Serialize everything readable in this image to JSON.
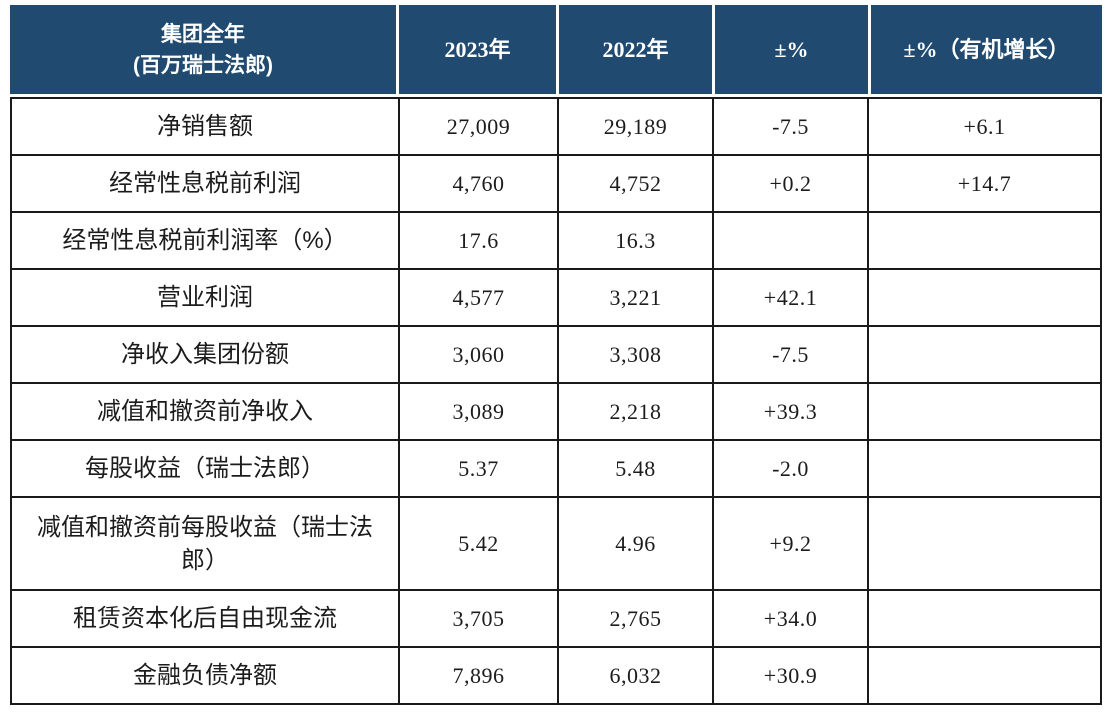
{
  "table": {
    "unit_note": "百万瑞士法郎",
    "columns": [
      "集团全年\n(百万瑞士法郎)",
      "2023年",
      "2022年",
      "±%",
      "±%（有机增长）"
    ],
    "rows": [
      {
        "label": "净销售额",
        "y2023": "27,009",
        "y2022": "29,189",
        "change_pct": "-7.5",
        "organic_pct": "+6.1"
      },
      {
        "label": "经常性息税前利润",
        "y2023": "4,760",
        "y2022": "4,752",
        "change_pct": "+0.2",
        "organic_pct": "+14.7"
      },
      {
        "label": "经常性息税前利润率（%）",
        "y2023": "17.6",
        "y2022": "16.3",
        "change_pct": "",
        "organic_pct": ""
      },
      {
        "label": "营业利润",
        "y2023": "4,577",
        "y2022": "3,221",
        "change_pct": "+42.1",
        "organic_pct": ""
      },
      {
        "label": "净收入集团份额",
        "y2023": "3,060",
        "y2022": "3,308",
        "change_pct": "-7.5",
        "organic_pct": ""
      },
      {
        "label": "减值和撤资前净收入",
        "y2023": "3,089",
        "y2022": "2,218",
        "change_pct": "+39.3",
        "organic_pct": ""
      },
      {
        "label": "每股收益（瑞士法郎）",
        "y2023": "5.37",
        "y2022": "5.48",
        "change_pct": "-2.0",
        "organic_pct": ""
      },
      {
        "label": "减值和撤资前每股收益（瑞士法郎）",
        "y2023": "5.42",
        "y2022": "4.96",
        "change_pct": "+9.2",
        "organic_pct": ""
      },
      {
        "label": "租赁资本化后自由现金流",
        "y2023": "3,705",
        "y2022": "2,765",
        "change_pct": "+34.0",
        "organic_pct": ""
      },
      {
        "label": "金融负债净额",
        "y2023": "7,896",
        "y2022": "6,032",
        "change_pct": "+30.9",
        "organic_pct": ""
      }
    ]
  },
  "colors": {
    "header_bg": "#204a70",
    "header_text": "#ffffff",
    "grid_line": "#1a1a1a",
    "body_text": "#1c1c1c"
  }
}
